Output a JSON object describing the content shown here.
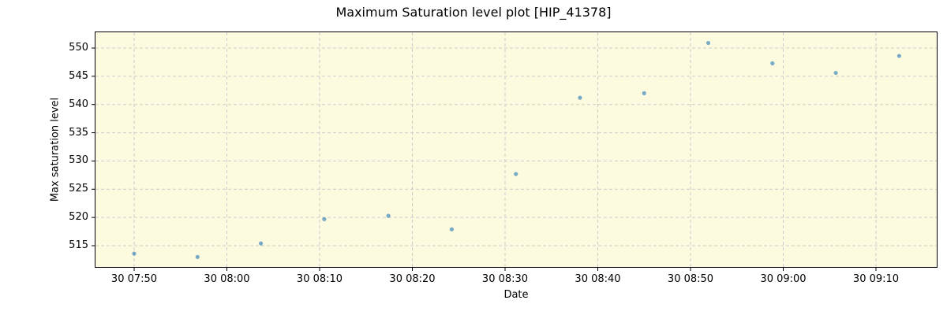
{
  "chart_data": {
    "type": "scatter",
    "title": "Maximum Saturation level plot [HIP_41378]",
    "xlabel": "Date",
    "ylabel": "Max saturation level",
    "x_tick_labels": [
      "30 07:50",
      "30 08:00",
      "30 08:10",
      "30 08:20",
      "30 08:30",
      "30 08:40",
      "30 08:50",
      "30 09:00",
      "30 09:10"
    ],
    "y_tick_labels": [
      "515",
      "520",
      "525",
      "530",
      "535",
      "540",
      "545",
      "550"
    ],
    "ylim": [
      511.6,
      552.9
    ],
    "xlim_minutes_from_0750": [
      -4.2,
      86.7
    ],
    "grid": true,
    "legend": null,
    "marker_color": "#1f77b4",
    "background_color": "#fcfbe0",
    "series": [
      {
        "name": "Max saturation level",
        "x": [
          "07:50:00",
          "07:56:50",
          "08:03:40",
          "08:10:30",
          "08:17:25",
          "08:24:15",
          "08:31:10",
          "08:38:05",
          "08:45:00",
          "08:51:55",
          "08:58:50",
          "09:05:40",
          "09:12:30"
        ],
        "y": [
          513.6,
          513.0,
          515.4,
          519.7,
          520.3,
          517.9,
          527.7,
          541.2,
          542.0,
          550.9,
          547.3,
          545.6,
          548.6
        ]
      }
    ]
  }
}
